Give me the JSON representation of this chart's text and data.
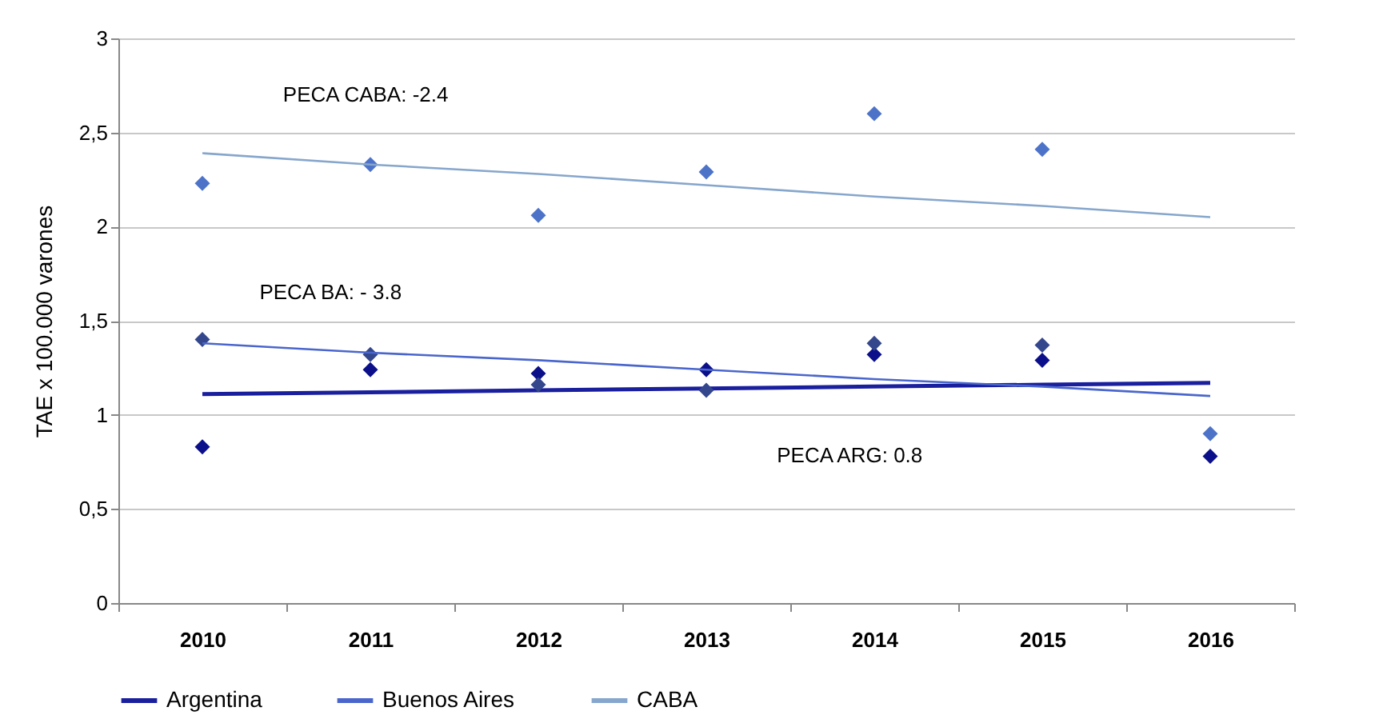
{
  "chart_data": {
    "type": "scatter",
    "ylabel": "TAE x 100.000 varones",
    "categories": [
      "2010",
      "2011",
      "2012",
      "2013",
      "2014",
      "2015",
      "2016"
    ],
    "series": [
      {
        "color": "#0b0f8a",
        "values": [
          0.83,
          1.24,
          1.22,
          1.24,
          1.32,
          1.29,
          0.78
        ]
      },
      {
        "type": "line",
        "name": "Argentina",
        "color": "#1a1f9e",
        "marker": "none",
        "values": [
          1.11,
          1.12,
          1.13,
          1.14,
          1.15,
          1.16,
          1.17
        ]
      },
      {
        "color": "#34478c",
        "values": [
          1.4,
          1.32,
          1.16,
          1.13,
          1.38,
          1.37,
          null
        ]
      },
      {
        "type": "line",
        "name": "Buenos Aires",
        "color": "#4a66cc",
        "marker": "none",
        "values": [
          1.38,
          1.33,
          1.29,
          1.24,
          1.19,
          1.15,
          1.1
        ]
      },
      {
        "color": "#4d73c9",
        "values": [
          2.23,
          2.33,
          2.06,
          2.29,
          2.6,
          2.41,
          0.9
        ]
      },
      {
        "type": "line",
        "name": "CABA",
        "color": "#86a6cc",
        "marker": "none",
        "values": [
          2.39,
          2.33,
          2.28,
          2.22,
          2.16,
          2.11,
          2.05
        ]
      }
    ],
    "ylim": [
      0,
      3
    ],
    "yticks": [
      0,
      {
        "value": 0.5,
        "label": "0,5"
      },
      1,
      {
        "value": 1.5,
        "label": "1,5"
      },
      2,
      {
        "value": 2.5,
        "label": "2,5"
      },
      3
    ],
    "grid": "y",
    "legend": "bottom",
    "marker": "diamond",
    "line_style": "solid",
    "annotations": [
      "PECA CABA: -2.4",
      "PECA BA: - 3.8",
      "PECA ARG: 0.8"
    ]
  }
}
